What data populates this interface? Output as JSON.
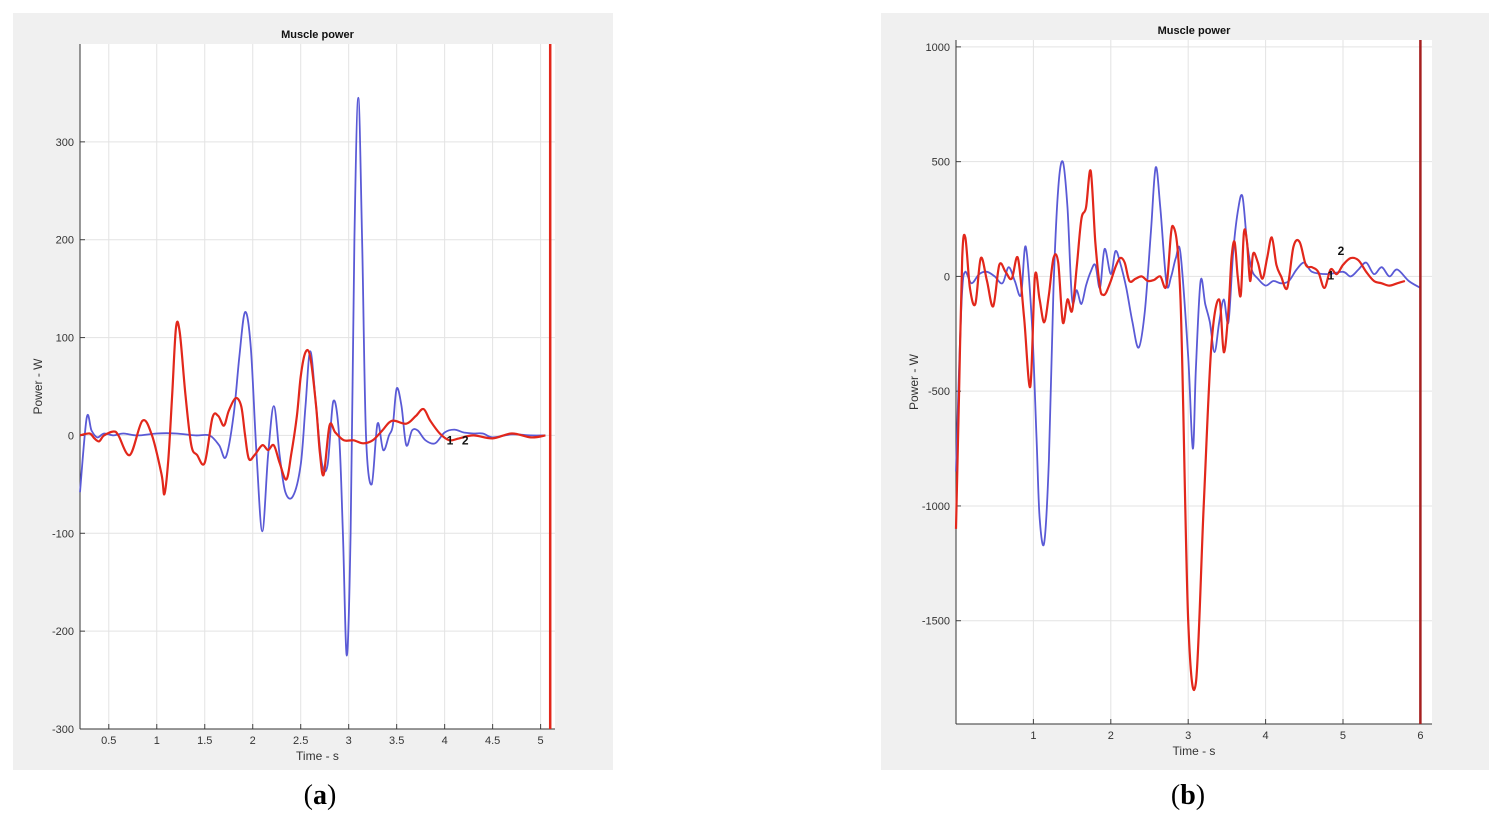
{
  "colors": {
    "series1": "#5a5ad6",
    "series2": "#e2271b",
    "marker": "#e2271b",
    "marker_b": "#a62020",
    "panel_bg": "#f0f0f0",
    "grid": "#e3e3e3"
  },
  "chart_data": [
    {
      "type": "line",
      "caption": "(a)",
      "caption_letter": "a",
      "title": "Muscle power",
      "xlabel": "Time - s",
      "ylabel": "Power - W",
      "xlim": [
        0.2,
        5.15
      ],
      "ylim": [
        -300,
        400
      ],
      "xticks": [
        "0.5",
        "1",
        "1.5",
        "2",
        "2.5",
        "3",
        "3.5",
        "4",
        "4.5",
        "5"
      ],
      "yticks": [
        "-300",
        "-200",
        "-100",
        "0",
        "100",
        "200",
        "300"
      ],
      "grid": true,
      "vertical_marker_x": 5.1,
      "annotations": [
        {
          "text": "1",
          "x": 4.02,
          "y": -5
        },
        {
          "text": "2",
          "x": 4.18,
          "y": -5
        }
      ],
      "series": [
        {
          "x": [
            0.2,
            0.27,
            0.32,
            0.38,
            0.45,
            0.55,
            0.65,
            0.8,
            1.0,
            1.2,
            1.4,
            1.55,
            1.65,
            1.72,
            1.8,
            1.86,
            1.92,
            1.98,
            2.04,
            2.1,
            2.16,
            2.22,
            2.28,
            2.34,
            2.42,
            2.5,
            2.55,
            2.6,
            2.66,
            2.72,
            2.78,
            2.84,
            2.9,
            2.94,
            2.98,
            3.02,
            3.06,
            3.1,
            3.14,
            3.18,
            3.24,
            3.3,
            3.36,
            3.42,
            3.46,
            3.5,
            3.55,
            3.6,
            3.66,
            3.72,
            3.8,
            3.9,
            4.0,
            4.1,
            4.2,
            4.3,
            4.4,
            4.5,
            4.7,
            4.9,
            5.05
          ],
          "values": [
            -58,
            18,
            5,
            -2,
            2,
            0,
            2,
            0,
            2,
            2,
            0,
            0,
            -10,
            -22,
            20,
            80,
            126,
            90,
            -20,
            -98,
            -20,
            30,
            -20,
            -58,
            -62,
            -30,
            30,
            86,
            30,
            -28,
            -30,
            35,
            0,
            -100,
            -225,
            -100,
            200,
            345,
            200,
            0,
            -50,
            12,
            -15,
            0,
            10,
            48,
            30,
            -10,
            5,
            5,
            -5,
            -8,
            3,
            6,
            3,
            2,
            2,
            -2,
            1,
            0,
            0
          ]
        },
        {
          "x": [
            0.2,
            0.3,
            0.35,
            0.4,
            0.45,
            0.55,
            0.6,
            0.72,
            0.85,
            0.95,
            1.05,
            1.08,
            1.12,
            1.16,
            1.2,
            1.24,
            1.3,
            1.36,
            1.42,
            1.5,
            1.58,
            1.64,
            1.7,
            1.75,
            1.82,
            1.88,
            1.92,
            1.96,
            2.02,
            2.1,
            2.16,
            2.22,
            2.28,
            2.35,
            2.4,
            2.46,
            2.5,
            2.55,
            2.6,
            2.66,
            2.7,
            2.74,
            2.8,
            2.86,
            2.95,
            3.05,
            3.15,
            3.25,
            3.35,
            3.45,
            3.6,
            3.7,
            3.78,
            3.85,
            3.95,
            4.05,
            4.15,
            4.3,
            4.5,
            4.7,
            4.9,
            5.05
          ],
          "values": [
            0,
            2,
            -3,
            -6,
            0,
            4,
            0,
            -20,
            15,
            0,
            -40,
            -60,
            -25,
            40,
            110,
            105,
            40,
            -10,
            -20,
            -28,
            18,
            20,
            10,
            25,
            38,
            30,
            0,
            -24,
            -20,
            -10,
            -15,
            -10,
            -28,
            -45,
            -20,
            20,
            60,
            85,
            80,
            30,
            -18,
            -40,
            10,
            3,
            -5,
            -5,
            -8,
            -5,
            5,
            15,
            12,
            20,
            27,
            15,
            2,
            -5,
            -3,
            0,
            -3,
            2,
            -2,
            0
          ]
        }
      ]
    },
    {
      "type": "line",
      "caption": "(b)",
      "caption_letter": "b",
      "title": "Muscle power",
      "xlabel": "Time - s",
      "ylabel": "Power - W",
      "xlim": [
        0.0,
        6.15
      ],
      "ylim": [
        -1950,
        1030
      ],
      "xticks": [
        "1",
        "2",
        "3",
        "4",
        "5",
        "6"
      ],
      "yticks": [
        "-1500",
        "-1000",
        "-500",
        "0",
        "500",
        "1000"
      ],
      "grid": true,
      "vertical_marker_x": 6.0,
      "annotations": [
        {
          "text": "2",
          "x": 4.93,
          "y": 110
        },
        {
          "text": "1",
          "x": 4.8,
          "y": 5
        }
      ],
      "series": [
        {
          "x": [
            0.0,
            0.04,
            0.08,
            0.12,
            0.2,
            0.3,
            0.4,
            0.5,
            0.6,
            0.68,
            0.76,
            0.84,
            0.9,
            0.98,
            1.04,
            1.08,
            1.14,
            1.2,
            1.26,
            1.32,
            1.38,
            1.44,
            1.5,
            1.56,
            1.62,
            1.68,
            1.74,
            1.8,
            1.86,
            1.92,
            2.0,
            2.06,
            2.12,
            2.2,
            2.28,
            2.36,
            2.44,
            2.52,
            2.58,
            2.64,
            2.72,
            2.78,
            2.84,
            2.9,
            3.0,
            3.06,
            3.1,
            3.16,
            3.22,
            3.28,
            3.34,
            3.4,
            3.46,
            3.52,
            3.58,
            3.64,
            3.7,
            3.76,
            3.82,
            3.9,
            4.0,
            4.1,
            4.2,
            4.3,
            4.4,
            4.5,
            4.6,
            4.8,
            5.0,
            5.1,
            5.2,
            5.3,
            5.4,
            5.5,
            5.6,
            5.7,
            5.85,
            6.0
          ],
          "values": [
            -850,
            -400,
            -60,
            20,
            -30,
            10,
            20,
            0,
            -30,
            40,
            -20,
            -80,
            130,
            -200,
            -700,
            -1050,
            -1160,
            -800,
            -50,
            380,
            500,
            300,
            -100,
            -60,
            -120,
            -40,
            20,
            50,
            -50,
            120,
            10,
            110,
            60,
            -50,
            -200,
            -310,
            -150,
            200,
            475,
            300,
            -30,
            0,
            80,
            100,
            -350,
            -750,
            -400,
            -20,
            -120,
            -200,
            -330,
            -200,
            -100,
            -200,
            100,
            280,
            350,
            150,
            30,
            -10,
            -40,
            -20,
            -30,
            -20,
            30,
            60,
            20,
            10,
            20,
            0,
            30,
            60,
            10,
            40,
            0,
            30,
            -20,
            -50
          ]
        },
        {
          "x": [
            0.0,
            0.04,
            0.08,
            0.12,
            0.18,
            0.25,
            0.32,
            0.4,
            0.48,
            0.56,
            0.64,
            0.72,
            0.8,
            0.88,
            0.96,
            1.02,
            1.08,
            1.14,
            1.2,
            1.26,
            1.32,
            1.38,
            1.44,
            1.5,
            1.56,
            1.62,
            1.68,
            1.74,
            1.8,
            1.86,
            1.9,
            1.94,
            2.0,
            2.06,
            2.12,
            2.18,
            2.24,
            2.32,
            2.4,
            2.48,
            2.56,
            2.64,
            2.72,
            2.8,
            2.9,
            3.0,
            3.1,
            3.2,
            3.3,
            3.4,
            3.46,
            3.52,
            3.56,
            3.6,
            3.64,
            3.68,
            3.72,
            3.76,
            3.8,
            3.84,
            3.9,
            3.96,
            4.02,
            4.08,
            4.14,
            4.2,
            4.28,
            4.36,
            4.44,
            4.52,
            4.6,
            4.68,
            4.76,
            4.84,
            4.92,
            5.0,
            5.1,
            5.2,
            5.3,
            5.4,
            5.5,
            5.6,
            5.7,
            5.8
          ],
          "values": [
            -1100,
            -500,
            80,
            170,
            -50,
            -120,
            80,
            -20,
            -130,
            50,
            20,
            -10,
            80,
            -180,
            -480,
            0,
            -100,
            -200,
            -80,
            80,
            60,
            -200,
            -100,
            -150,
            40,
            250,
            300,
            460,
            150,
            -50,
            -80,
            -70,
            -20,
            40,
            80,
            60,
            -20,
            -10,
            0,
            -20,
            -15,
            0,
            -40,
            220,
            -100,
            -1500,
            -1770,
            -1000,
            -300,
            -100,
            -330,
            -150,
            80,
            150,
            0,
            -80,
            190,
            150,
            -20,
            100,
            60,
            -10,
            80,
            170,
            50,
            0,
            -50,
            130,
            150,
            50,
            40,
            20,
            -50,
            30,
            10,
            50,
            80,
            70,
            20,
            -20,
            -30,
            -40,
            -30,
            -20
          ]
        }
      ]
    }
  ]
}
